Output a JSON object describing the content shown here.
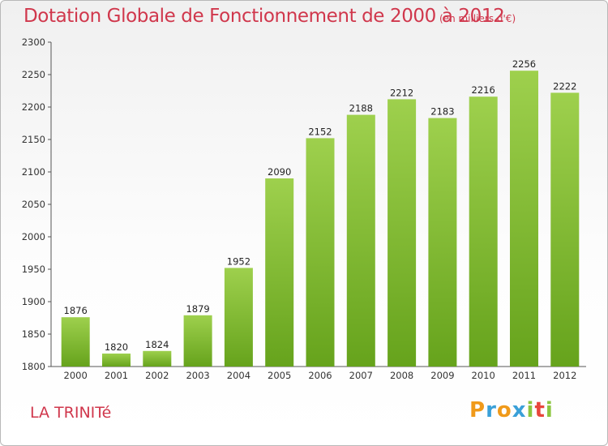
{
  "title": "Dotation Globale de Fonctionnement de 2000 à 2012",
  "subtitle": "(en milliers d'€)",
  "commune": "LA TRINITé",
  "logo": {
    "letters": [
      "P",
      "r",
      "o",
      "x",
      "i",
      "t",
      "i"
    ],
    "colors": [
      "#f09a1a",
      "#3aa0d8",
      "#f09a1a",
      "#3aa0d8",
      "#8cc63f",
      "#e8463c",
      "#8cc63f"
    ]
  },
  "colors": {
    "bar_light": "#9ed04d",
    "bar_dark": "#66a31c",
    "title": "#d0374c"
  },
  "chart_data": {
    "type": "bar",
    "categories": [
      "2000",
      "2001",
      "2002",
      "2003",
      "2004",
      "2005",
      "2006",
      "2007",
      "2008",
      "2009",
      "2010",
      "2011",
      "2012"
    ],
    "values": [
      1876,
      1820,
      1824,
      1879,
      1952,
      2090,
      2152,
      2188,
      2212,
      2183,
      2216,
      2256,
      2222
    ],
    "data_labels": [
      "1876",
      "1820",
      "1824",
      "1879",
      "1952",
      "2090",
      "2152",
      "2188",
      "2212",
      "2183",
      "2216",
      "2256",
      "2222"
    ],
    "y_ticks": [
      "1800",
      "1850",
      "1900",
      "1950",
      "2000",
      "2050",
      "2100",
      "2150",
      "2200",
      "2250",
      "2300"
    ],
    "ylim": [
      1800,
      2300
    ],
    "grid": false,
    "legend": "none"
  }
}
